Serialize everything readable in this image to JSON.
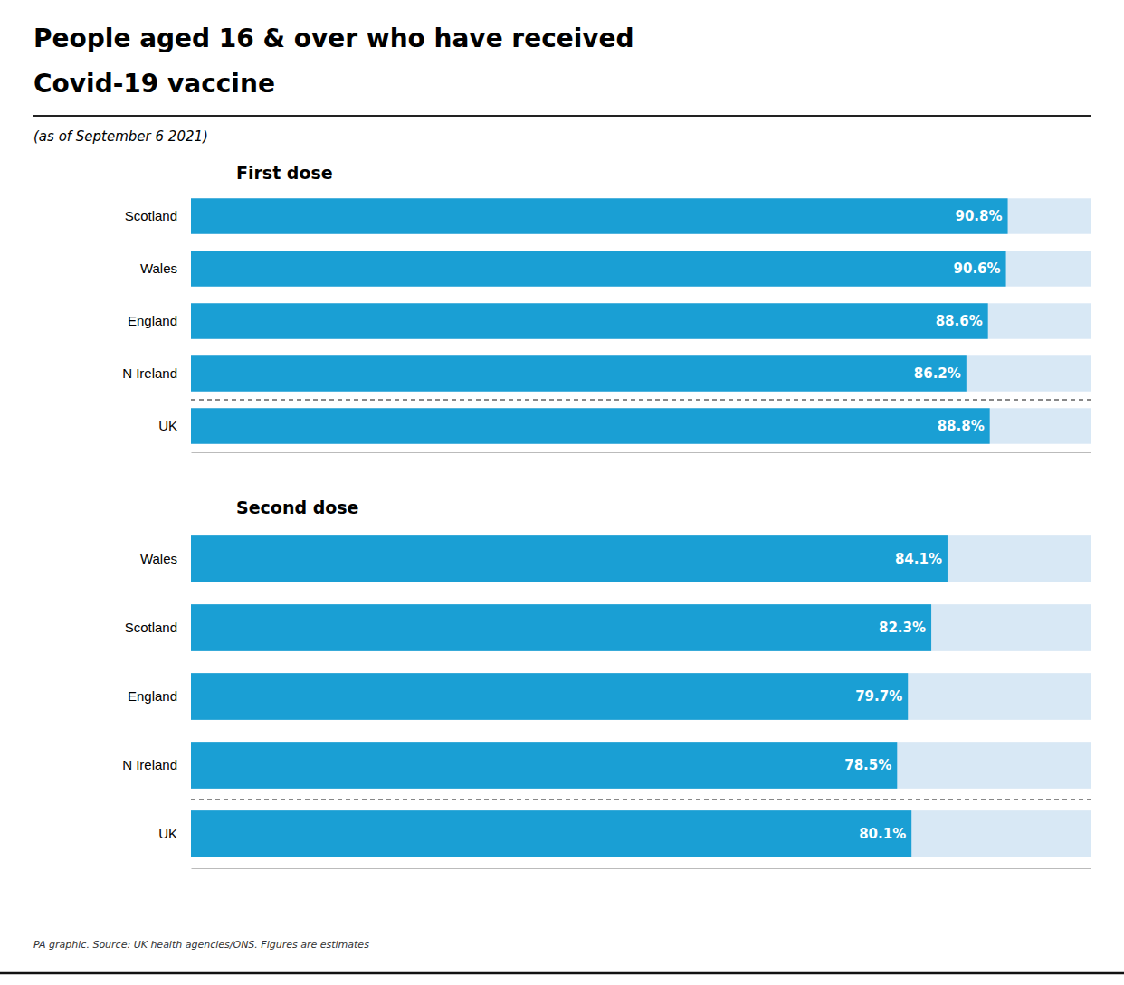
{
  "title": [
    "People aged 16 & over who have received",
    "Covid-19 vaccine"
  ],
  "subtitle": "(as of September 6 2021)",
  "source": "PA graphic. Source: UK health agencies/ONS. Figures are estimates",
  "chart_data": [
    {
      "type": "bar",
      "orientation": "horizontal",
      "title": "First dose",
      "categories": [
        "Scotland",
        "Wales",
        "England",
        "N Ireland",
        "UK"
      ],
      "values": [
        90.8,
        90.6,
        88.6,
        86.2,
        88.8
      ],
      "value_labels": [
        "90.8%",
        "90.6%",
        "88.6%",
        "86.2%",
        "88.8%"
      ],
      "data_labels": true,
      "color": "#1a9fd4",
      "xlim": [
        0,
        100
      ],
      "tick_labels": "y",
      "grid": false
    },
    {
      "type": "bar",
      "orientation": "horizontal",
      "title": "Second dose",
      "categories": [
        "Wales",
        "Scotland",
        "England",
        "N Ireland",
        "UK"
      ],
      "values": [
        84.1,
        82.3,
        79.7,
        78.5,
        80.1
      ],
      "value_labels": [
        "84.1%",
        "82.3%",
        "79.7%",
        "78.5%",
        "80.1%"
      ],
      "data_labels": true,
      "color": "#1a9fd4",
      "xlim": [
        0,
        100
      ],
      "tick_labels": "y",
      "grid": false
    }
  ]
}
